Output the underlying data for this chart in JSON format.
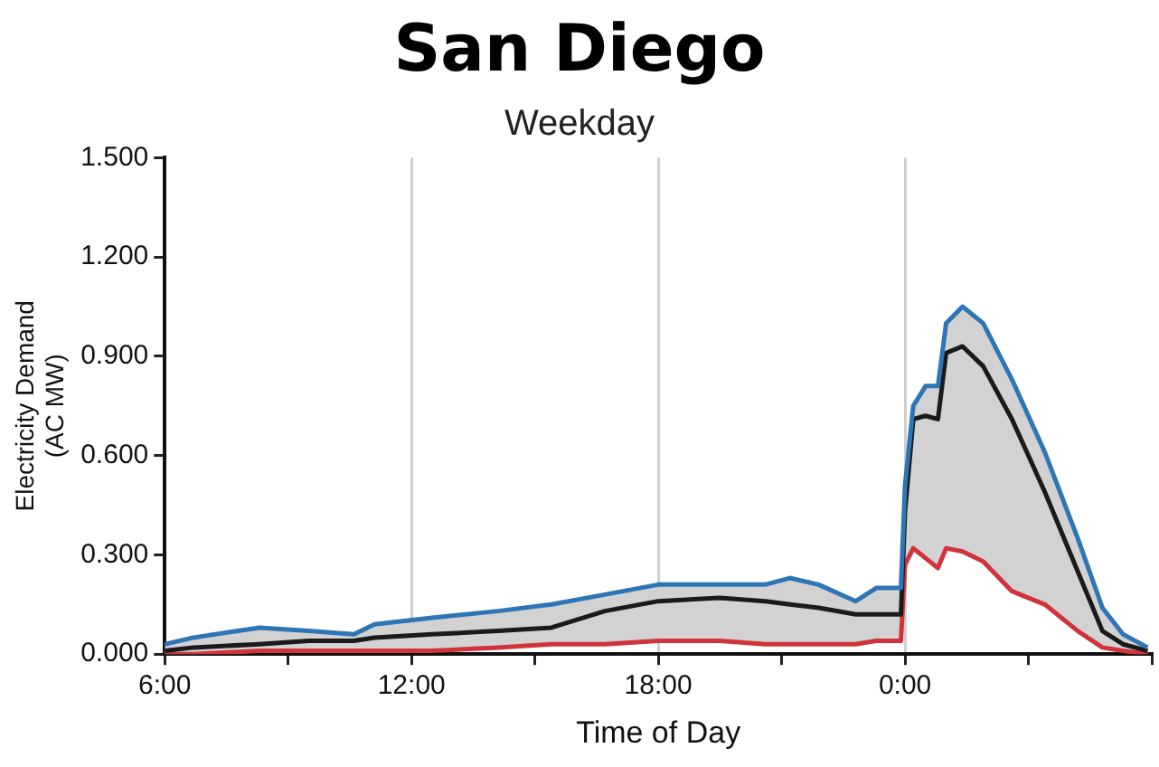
{
  "chart_data": {
    "type": "line",
    "title": "San Diego",
    "subtitle": "Weekday",
    "xlabel": "Time of Day",
    "ylabel": "Electricity Demand\n(AC MW)",
    "x": [
      6.0,
      6.7,
      8.3,
      9.5,
      10.6,
      11.1,
      12.5,
      14.1,
      15.4,
      16.7,
      18.0,
      19.5,
      20.6,
      21.2,
      21.9,
      22.8,
      23.3,
      23.9,
      24.0,
      24.2,
      24.5,
      24.8,
      25.0,
      25.4,
      25.9,
      26.6,
      27.4,
      28.2,
      28.8,
      29.3,
      29.9
    ],
    "series": [
      {
        "color": "#2e75b6",
        "values": [
          0.03,
          0.05,
          0.08,
          0.07,
          0.06,
          0.09,
          0.11,
          0.13,
          0.15,
          0.18,
          0.21,
          0.21,
          0.21,
          0.23,
          0.21,
          0.16,
          0.2,
          0.2,
          0.51,
          0.75,
          0.81,
          0.81,
          1.0,
          1.05,
          1.0,
          0.83,
          0.61,
          0.35,
          0.14,
          0.06,
          0.02
        ]
      },
      {
        "color": "#1a1a1a",
        "values": [
          0.01,
          0.02,
          0.03,
          0.04,
          0.04,
          0.05,
          0.06,
          0.07,
          0.08,
          0.13,
          0.16,
          0.17,
          0.16,
          0.15,
          0.14,
          0.12,
          0.12,
          0.12,
          0.43,
          0.71,
          0.72,
          0.71,
          0.91,
          0.93,
          0.87,
          0.71,
          0.49,
          0.25,
          0.07,
          0.03,
          0.01
        ],
        "lower": [
          0.0,
          0.0,
          0.01,
          0.01,
          0.01,
          0.01,
          0.01,
          0.02,
          0.03,
          0.03,
          0.04,
          0.04,
          0.03,
          0.03,
          0.03,
          0.03,
          0.04,
          0.04,
          0.27,
          0.32,
          0.29,
          0.26,
          0.32,
          0.31,
          0.28,
          0.19,
          0.15,
          0.07,
          0.02,
          0.01,
          0.0
        ],
        "upper": [
          0.03,
          0.05,
          0.08,
          0.07,
          0.06,
          0.09,
          0.11,
          0.13,
          0.15,
          0.18,
          0.21,
          0.21,
          0.21,
          0.23,
          0.21,
          0.16,
          0.2,
          0.2,
          0.51,
          0.75,
          0.81,
          0.81,
          1.0,
          1.05,
          1.0,
          0.83,
          0.61,
          0.35,
          0.14,
          0.06,
          0.02
        ]
      },
      {
        "color": "#d0343a",
        "values": [
          0.0,
          0.0,
          0.01,
          0.01,
          0.01,
          0.01,
          0.01,
          0.02,
          0.03,
          0.03,
          0.04,
          0.04,
          0.03,
          0.03,
          0.03,
          0.03,
          0.04,
          0.04,
          0.27,
          0.32,
          0.29,
          0.26,
          0.32,
          0.31,
          0.28,
          0.19,
          0.15,
          0.07,
          0.02,
          0.01,
          0.0
        ]
      }
    ],
    "xlim": [
      6,
      30
    ],
    "xticks": [
      {
        "value": 6,
        "label": "6:00"
      },
      {
        "value": 9,
        "label": null
      },
      {
        "value": 12,
        "label": "12:00"
      },
      {
        "value": 15,
        "label": null
      },
      {
        "value": 18,
        "label": "18:00"
      },
      {
        "value": 21,
        "label": null
      },
      {
        "value": 24,
        "label": "0:00"
      },
      {
        "value": 27,
        "label": null
      },
      {
        "value": 30,
        "label": null
      }
    ],
    "ylim": [
      0,
      1.5
    ],
    "yticks": [
      {
        "value": 0,
        "label": "0.000"
      },
      {
        "value": 0.3,
        "label": "0.300"
      },
      {
        "value": 0.6,
        "label": "0.600"
      },
      {
        "value": 0.9,
        "label": "0.900"
      },
      {
        "value": 1.2,
        "label": "1.200"
      },
      {
        "value": 1.5,
        "label": "1.500"
      }
    ],
    "grid": "x",
    "legend": false,
    "marker": "none",
    "line_style": "solid"
  }
}
